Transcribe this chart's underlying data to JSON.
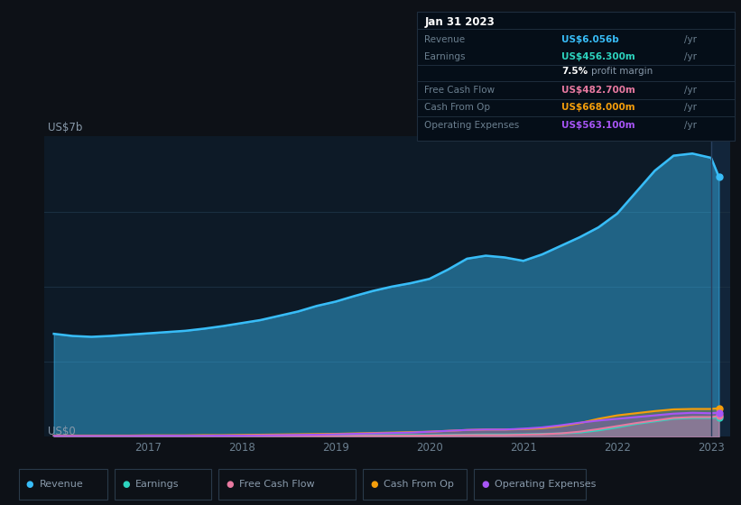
{
  "bg_color": "#0d1117",
  "plot_bg_color": "#0d1a27",
  "grid_color": "#162333",
  "title_y_label": "US$7b",
  "title_y0_label": "US$0",
  "x_years": [
    2016.0,
    2016.2,
    2016.4,
    2016.6,
    2016.8,
    2017.0,
    2017.2,
    2017.4,
    2017.6,
    2017.8,
    2018.0,
    2018.2,
    2018.4,
    2018.6,
    2018.8,
    2019.0,
    2019.2,
    2019.4,
    2019.6,
    2019.8,
    2020.0,
    2020.2,
    2020.4,
    2020.6,
    2020.8,
    2021.0,
    2021.2,
    2021.4,
    2021.6,
    2021.8,
    2022.0,
    2022.2,
    2022.4,
    2022.6,
    2022.8,
    2023.0,
    2023.083
  ],
  "revenue": [
    2.4,
    2.35,
    2.33,
    2.35,
    2.38,
    2.41,
    2.44,
    2.47,
    2.52,
    2.58,
    2.65,
    2.72,
    2.82,
    2.92,
    3.05,
    3.15,
    3.28,
    3.4,
    3.5,
    3.58,
    3.68,
    3.9,
    4.15,
    4.22,
    4.18,
    4.1,
    4.25,
    4.45,
    4.65,
    4.88,
    5.2,
    5.7,
    6.2,
    6.55,
    6.6,
    6.5,
    6.056
  ],
  "earnings": [
    0.015,
    0.015,
    0.015,
    0.015,
    0.015,
    0.02,
    0.02,
    0.02,
    0.02,
    0.025,
    0.025,
    0.025,
    0.025,
    0.025,
    0.03,
    0.03,
    0.035,
    0.04,
    0.04,
    0.04,
    0.04,
    0.045,
    0.05,
    0.055,
    0.055,
    0.06,
    0.07,
    0.08,
    0.1,
    0.15,
    0.22,
    0.3,
    0.36,
    0.42,
    0.44,
    0.44,
    0.456
  ],
  "free_cash_flow": [
    0.005,
    0.005,
    0.005,
    0.005,
    0.005,
    0.008,
    0.008,
    0.008,
    0.008,
    0.01,
    0.01,
    0.01,
    0.01,
    0.01,
    0.015,
    0.015,
    0.02,
    0.02,
    0.025,
    0.025,
    0.03,
    0.035,
    0.04,
    0.04,
    0.04,
    0.05,
    0.06,
    0.08,
    0.12,
    0.18,
    0.25,
    0.32,
    0.38,
    0.44,
    0.46,
    0.46,
    0.4827
  ],
  "cash_from_op": [
    0.03,
    0.03,
    0.03,
    0.03,
    0.03,
    0.035,
    0.035,
    0.035,
    0.04,
    0.04,
    0.045,
    0.05,
    0.055,
    0.06,
    0.065,
    0.07,
    0.08,
    0.09,
    0.1,
    0.11,
    0.12,
    0.14,
    0.16,
    0.17,
    0.17,
    0.18,
    0.2,
    0.25,
    0.32,
    0.42,
    0.5,
    0.55,
    0.6,
    0.64,
    0.65,
    0.65,
    0.668
  ],
  "operating_expenses": [
    0.02,
    0.02,
    0.02,
    0.02,
    0.02,
    0.025,
    0.025,
    0.025,
    0.025,
    0.03,
    0.03,
    0.035,
    0.04,
    0.045,
    0.05,
    0.06,
    0.07,
    0.08,
    0.09,
    0.1,
    0.12,
    0.14,
    0.16,
    0.17,
    0.17,
    0.19,
    0.22,
    0.27,
    0.33,
    0.38,
    0.42,
    0.46,
    0.5,
    0.54,
    0.56,
    0.55,
    0.5631
  ],
  "revenue_color": "#38bdf8",
  "earnings_color": "#2dd4bf",
  "fcf_color": "#e879a0",
  "cashfromop_color": "#f59e0b",
  "opex_color": "#a855f7",
  "highlight_x": 2023.0,
  "x_ticks": [
    2017,
    2018,
    2019,
    2020,
    2021,
    2022,
    2023
  ],
  "ylim": [
    0,
    7.0
  ],
  "xlim_start": 2015.9,
  "xlim_end": 2023.2,
  "tooltip": {
    "date": "Jan 31 2023",
    "revenue_label": "Revenue",
    "revenue_val": "US$6.056b",
    "revenue_yr": "/yr",
    "earnings_label": "Earnings",
    "earnings_val": "US$456.300m",
    "earnings_yr": "/yr",
    "margin_pct": "7.5%",
    "margin_label": "profit margin",
    "fcf_label": "Free Cash Flow",
    "fcf_val": "US$482.700m",
    "fcf_yr": "/yr",
    "cfop_label": "Cash From Op",
    "cfop_val": "US$668.000m",
    "cfop_yr": "/yr",
    "opex_label": "Operating Expenses",
    "opex_val": "US$563.100m",
    "opex_yr": "/yr"
  },
  "legend_items": [
    {
      "label": "Revenue",
      "color": "#38bdf8"
    },
    {
      "label": "Earnings",
      "color": "#2dd4bf"
    },
    {
      "label": "Free Cash Flow",
      "color": "#e879a0"
    },
    {
      "label": "Cash From Op",
      "color": "#f59e0b"
    },
    {
      "label": "Operating Expenses",
      "color": "#a855f7"
    }
  ]
}
